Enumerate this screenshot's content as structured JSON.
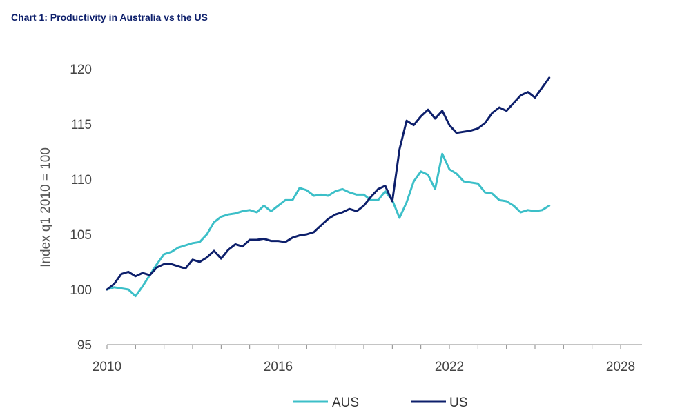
{
  "title": "Chart 1: Productivity in Australia vs the US",
  "chart_data": {
    "type": "line",
    "title": "Chart 1: Productivity in Australia vs the US",
    "xlabel": "",
    "ylabel": "Index q1 2010 = 100",
    "xlim": [
      2010,
      2028.75
    ],
    "ylim": [
      95,
      120
    ],
    "x_ticks": [
      2010,
      2016,
      2022,
      2028
    ],
    "x_tick_labels": [
      "2010",
      "2016",
      "2022",
      "2028"
    ],
    "y_ticks": [
      95,
      100,
      105,
      110,
      115,
      120
    ],
    "y_tick_labels": [
      "95",
      "100",
      "105",
      "110",
      "115",
      "120"
    ],
    "grid": false,
    "legend_position": "bottom",
    "x_start": 2010,
    "x_step": 0.25,
    "series": [
      {
        "name": "AUS",
        "color": "#3cbfc8",
        "values": [
          100.0,
          100.2,
          100.1,
          100.0,
          99.4,
          100.3,
          101.3,
          102.3,
          103.2,
          103.4,
          103.8,
          104.0,
          104.2,
          104.3,
          105.0,
          106.1,
          106.6,
          106.8,
          106.9,
          107.1,
          107.2,
          107.0,
          107.6,
          107.1,
          107.6,
          108.1,
          108.1,
          109.2,
          109.0,
          108.5,
          108.6,
          108.5,
          108.9,
          109.1,
          108.8,
          108.6,
          108.6,
          108.1,
          108.1,
          108.9,
          108.1,
          106.5,
          107.9,
          109.8,
          110.7,
          110.4,
          109.1,
          112.3,
          110.9,
          110.5,
          109.8,
          109.7,
          109.6,
          108.8,
          108.7,
          108.1,
          108.0,
          107.6,
          107.0,
          107.2,
          107.1,
          107.2,
          107.6
        ]
      },
      {
        "name": "US",
        "color": "#0d1f6b",
        "values": [
          100.0,
          100.5,
          101.4,
          101.6,
          101.2,
          101.5,
          101.3,
          102.0,
          102.3,
          102.3,
          102.1,
          101.9,
          102.7,
          102.5,
          102.9,
          103.5,
          102.8,
          103.6,
          104.1,
          103.9,
          104.5,
          104.5,
          104.6,
          104.4,
          104.4,
          104.3,
          104.7,
          104.9,
          105.0,
          105.2,
          105.8,
          106.4,
          106.8,
          107.0,
          107.3,
          107.1,
          107.6,
          108.4,
          109.1,
          109.4,
          108.0,
          112.7,
          115.3,
          114.9,
          115.7,
          116.3,
          115.5,
          116.2,
          114.9,
          114.2,
          114.3,
          114.4,
          114.6,
          115.1,
          116.0,
          116.5,
          116.2,
          116.9,
          117.6,
          117.9,
          117.4,
          118.3,
          119.2
        ]
      }
    ]
  }
}
